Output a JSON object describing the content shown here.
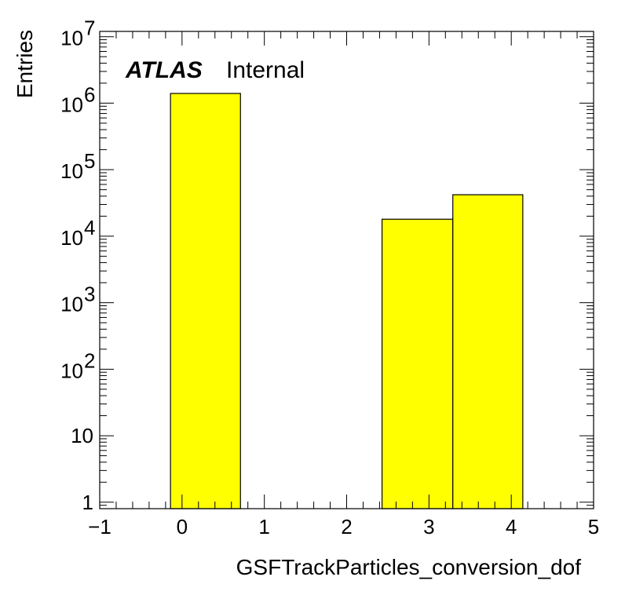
{
  "chart_data": {
    "type": "bar",
    "histogram": true,
    "log_y": true,
    "bins": [
      {
        "x_low": -0.14,
        "x_high": 0.71,
        "value": 1400000
      },
      {
        "x_low": 2.43,
        "x_high": 3.29,
        "value": 18000
      },
      {
        "x_low": 3.29,
        "x_high": 4.14,
        "value": 42000
      }
    ],
    "xlabel": "GSFTrackParticles_conversion_dof",
    "ylabel": "Entries",
    "xlim": [
      -1,
      5
    ],
    "ylim": [
      0.8,
      12000000
    ],
    "x_ticks": [
      {
        "value": -1,
        "label": "−1"
      },
      {
        "value": 0,
        "label": "0"
      },
      {
        "value": 1,
        "label": "1"
      },
      {
        "value": 2,
        "label": "2"
      },
      {
        "value": 3,
        "label": "3"
      },
      {
        "value": 4,
        "label": "4"
      },
      {
        "value": 5,
        "label": "5"
      }
    ],
    "y_ticks": [
      {
        "value": 1,
        "label": "1"
      },
      {
        "value": 10,
        "label": "10"
      },
      {
        "value": 100,
        "base": "10",
        "exp": "2"
      },
      {
        "value": 1000,
        "base": "10",
        "exp": "3"
      },
      {
        "value": 10000,
        "base": "10",
        "exp": "4"
      },
      {
        "value": 100000,
        "base": "10",
        "exp": "5"
      },
      {
        "value": 1000000,
        "base": "10",
        "exp": "6"
      },
      {
        "value": 10000000,
        "base": "10",
        "exp": "7"
      }
    ],
    "label_main": "ATLAS",
    "label_sub": "Internal",
    "fill_color": "#ffff00",
    "line_color": "#000000"
  }
}
